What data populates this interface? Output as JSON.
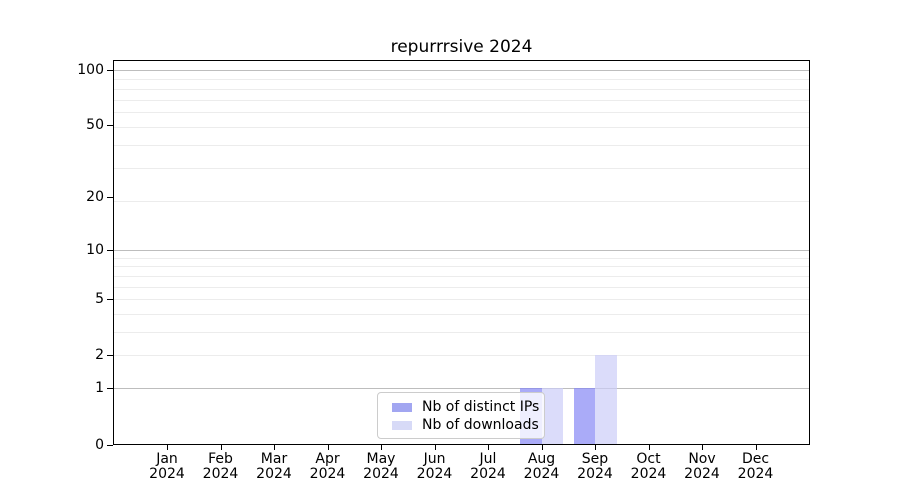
{
  "figure": {
    "title": "repurrrsive 2024"
  },
  "chart_data": {
    "type": "bar",
    "title": "repurrrsive 2024",
    "x_categories": [
      "Jan 2024",
      "Feb 2024",
      "Mar 2024",
      "Apr 2024",
      "May 2024",
      "Jun 2024",
      "Jul 2024",
      "Aug 2024",
      "Sep 2024",
      "Oct 2024",
      "Nov 2024",
      "Dec 2024"
    ],
    "x_tick_months": [
      "Jan",
      "Feb",
      "Mar",
      "Apr",
      "May",
      "Jun",
      "Jul",
      "Aug",
      "Sep",
      "Oct",
      "Nov",
      "Dec"
    ],
    "x_tick_year": "2024",
    "yscale": "log10(value+1)",
    "ytick_labels": [
      "100",
      "50",
      "20",
      "10",
      "5",
      "2",
      "1",
      "0"
    ],
    "ytick_values": [
      100,
      50,
      20,
      10,
      5,
      2,
      1,
      0
    ],
    "grid": "horizontal, major and minor, grid on",
    "legend_position": "bottom-center inside plot",
    "series": [
      {
        "name": "Nb of distinct IPs",
        "bar_fill": "rgba(134,136,245,0.7)",
        "swatch_color": "#a2a6f1",
        "values": [
          0,
          0,
          0,
          0,
          0,
          0,
          0,
          1,
          1,
          0,
          0,
          0
        ]
      },
      {
        "name": "Nb of downloads",
        "bar_fill": "rgba(204,205,248,0.7)",
        "swatch_color": "#d7daf7",
        "values": [
          0,
          0,
          0,
          0,
          0,
          0,
          0,
          1,
          2,
          0,
          0,
          0
        ]
      }
    ],
    "minor_grid_values": [
      2,
      3,
      4,
      5,
      6,
      7,
      8,
      9,
      19,
      29,
      39,
      49,
      59,
      69,
      79,
      89
    ],
    "major_grid_values": [
      1,
      10,
      100
    ]
  }
}
